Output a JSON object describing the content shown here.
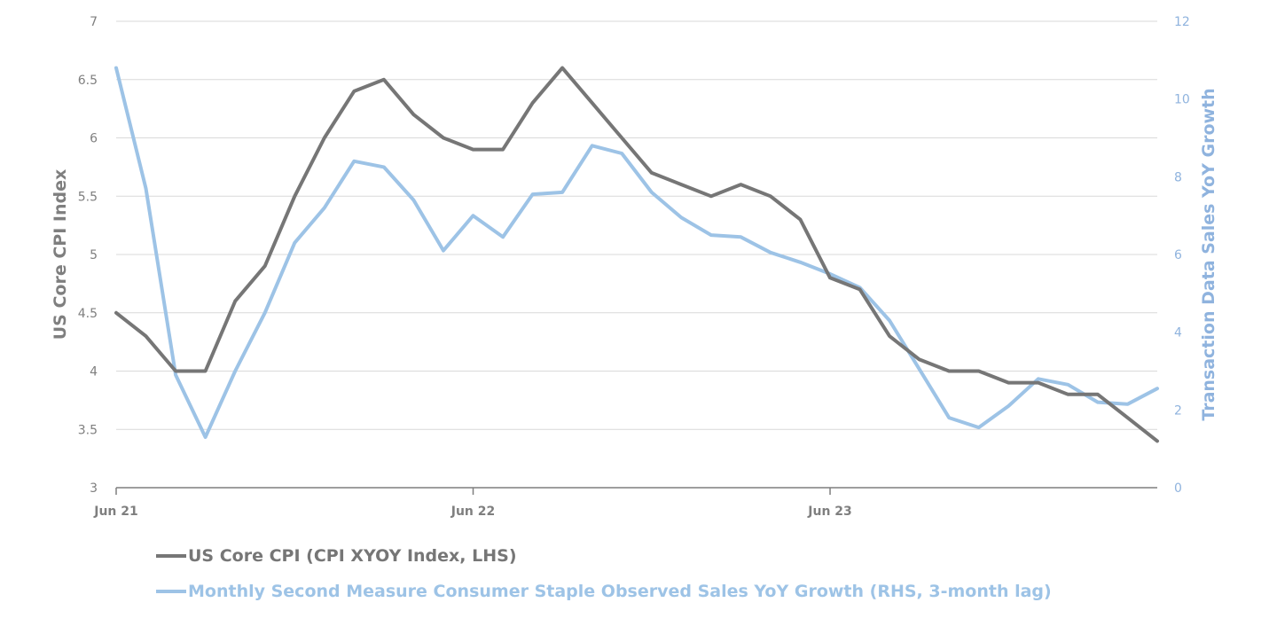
{
  "chart_data": {
    "type": "line",
    "title": "",
    "xlabel": "",
    "ylabel_left": "US Core CPI Index",
    "ylabel_right": "Transaction Data Sales YoY Growth",
    "ylim_left": [
      3,
      7
    ],
    "ylim_right": [
      0,
      12
    ],
    "left_ticks": [
      "3",
      "3.5",
      "4",
      "4.5",
      "5",
      "5.5",
      "6",
      "6.5",
      "7"
    ],
    "right_ticks": [
      "0",
      "2",
      "4",
      "6",
      "8",
      "10",
      "12"
    ],
    "x_tick_labels": [
      "Jun 21",
      "Jun 22",
      "Jun 23"
    ],
    "x_tick_indices": [
      0,
      12,
      24
    ],
    "x_count": 36,
    "grid": true,
    "legend_position": "bottom-left",
    "series": [
      {
        "name": "US Core CPI (CPI XYOY Index, LHS)",
        "axis": "left",
        "color": "#767676",
        "values": [
          4.5,
          4.3,
          4.0,
          4.0,
          4.6,
          4.9,
          5.5,
          6.0,
          6.4,
          6.5,
          6.2,
          6.0,
          5.9,
          5.9,
          6.3,
          6.6,
          6.3,
          6.0,
          5.7,
          5.6,
          5.5,
          5.6,
          5.5,
          5.3,
          4.8,
          4.7,
          4.3,
          4.1,
          4.0,
          4.0,
          3.9,
          3.9,
          3.8,
          3.8,
          3.6,
          3.4
        ]
      },
      {
        "name": "Monthly Second Measure Consumer Staple Observed Sales YoY Growth (RHS, 3-month lag)",
        "axis": "right",
        "color": "#9dc3e6",
        "values": [
          10.8,
          7.7,
          2.9,
          1.3,
          3.0,
          4.5,
          6.3,
          7.2,
          8.4,
          8.25,
          7.4,
          6.1,
          7.0,
          6.45,
          7.55,
          7.6,
          8.8,
          8.6,
          7.6,
          6.95,
          6.5,
          6.45,
          6.05,
          5.8,
          5.5,
          5.15,
          4.3,
          3.05,
          1.8,
          1.55,
          2.1,
          2.8,
          2.65,
          2.2,
          2.15,
          2.55
        ]
      }
    ]
  }
}
